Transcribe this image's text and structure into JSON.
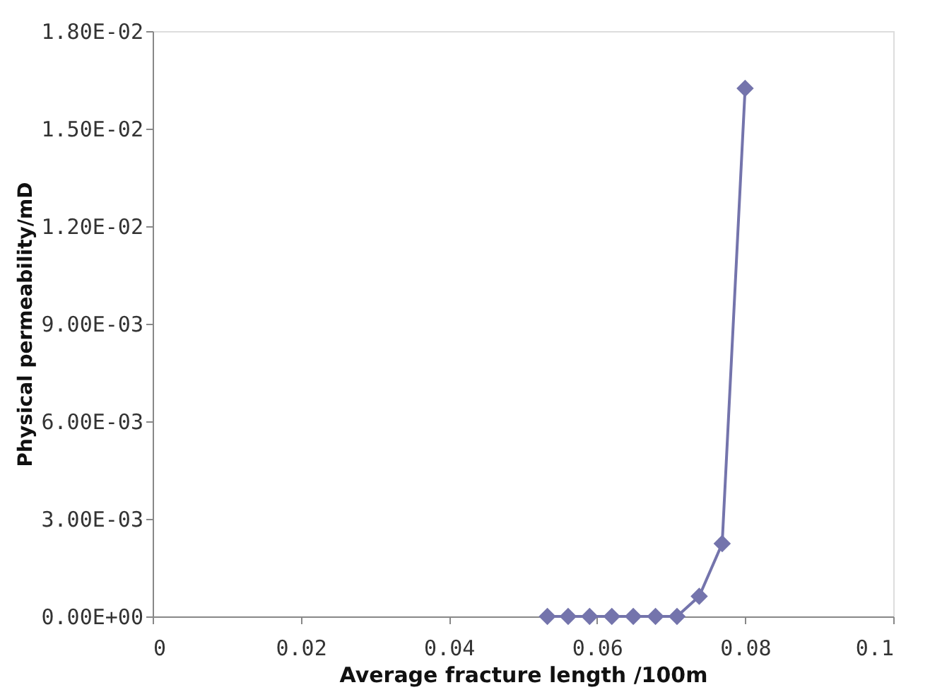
{
  "chart_data": {
    "type": "line",
    "xlabel": "Average fracture length  /100m",
    "ylabel": "Physical permeability/mD",
    "x": [
      0.0533,
      0.0561,
      0.059,
      0.062,
      0.0649,
      0.0679,
      0.0708,
      0.0738,
      0.0769,
      0.08
    ],
    "series": [
      {
        "color": "#7474ac",
        "values": [
          0,
          0,
          0,
          0,
          0,
          0,
          0,
          0.00062,
          0.00224,
          0.01624
        ]
      }
    ],
    "marker": "diamond",
    "line_style": "solid",
    "grid": false,
    "xlim": [
      0,
      0.1
    ],
    "xticks": [
      0,
      0.02,
      0.04,
      0.06,
      0.08,
      0.1
    ],
    "ylim": [
      0,
      0.018
    ],
    "yticks": [
      {
        "value": 0,
        "label": "0.00E+00"
      },
      {
        "value": 0.003,
        "label": "3.00E-03"
      },
      {
        "value": 0.006,
        "label": "6.00E-03"
      },
      {
        "value": 0.009,
        "label": "9.00E-03"
      },
      {
        "value": 0.012,
        "label": "1.20E-02"
      },
      {
        "value": 0.015,
        "label": "1.50E-02"
      },
      {
        "value": 0.018,
        "label": "1.80E-02"
      }
    ]
  }
}
